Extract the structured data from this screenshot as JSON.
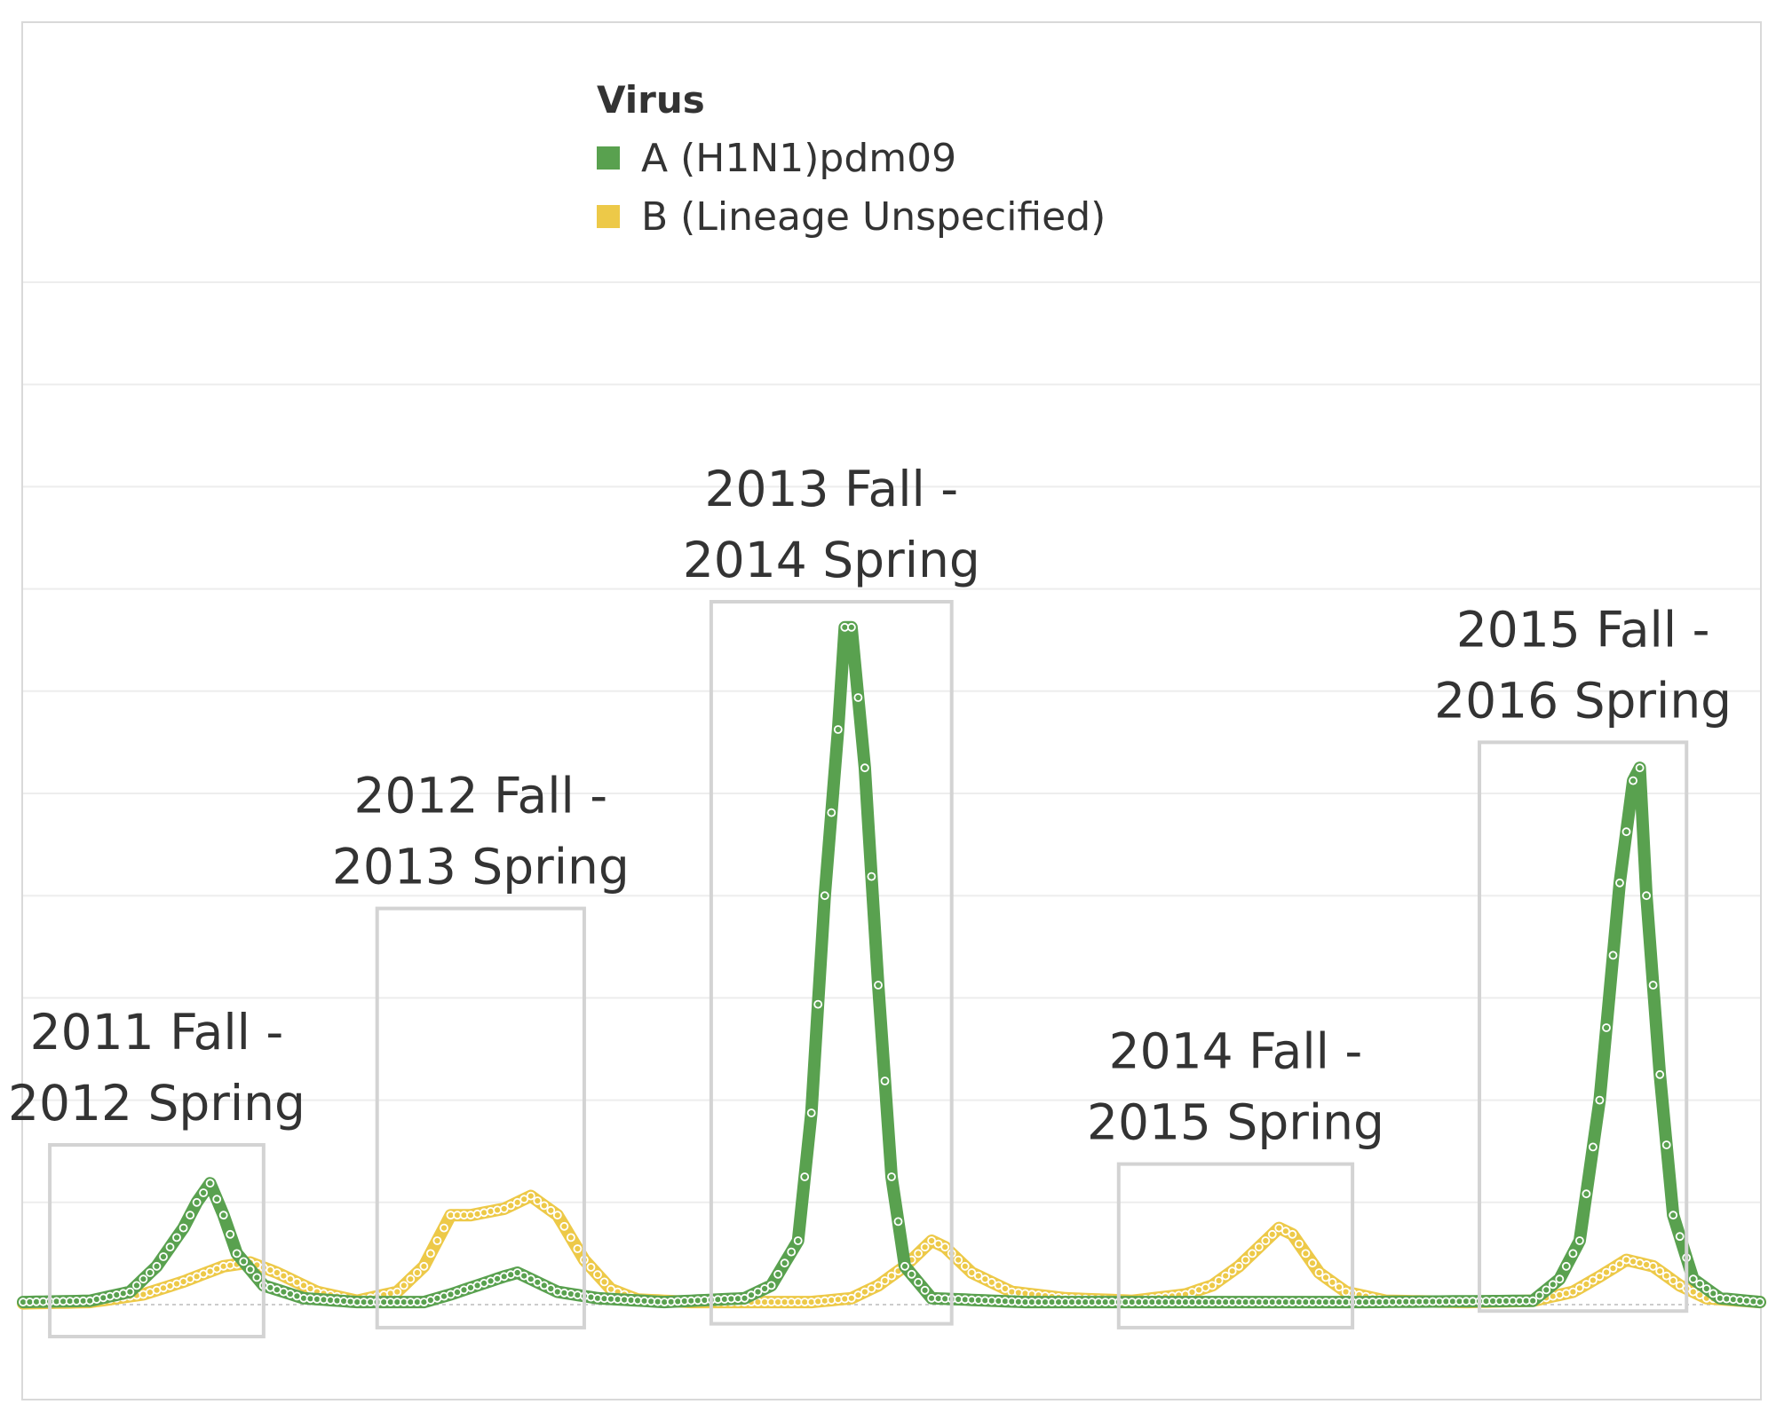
{
  "chart_data": {
    "type": "line",
    "title": "",
    "xlabel": "",
    "ylabel": "",
    "grid": true,
    "legend": {
      "title": "Virus",
      "placement": "top-center",
      "entries": [
        {
          "label": "A (H1N1)pdm09",
          "color": "#59a14f"
        },
        {
          "label": "B (Lineage Unspecified)",
          "color": "#edc948"
        }
      ]
    },
    "ylim": [
      0,
      10
    ],
    "x_range": [
      0,
      260
    ],
    "series": [
      {
        "name": "A (H1N1)pdm09",
        "color": "#59a14f",
        "points": [
          [
            0,
            0.02
          ],
          [
            10,
            0.03
          ],
          [
            16,
            0.1
          ],
          [
            20,
            0.3
          ],
          [
            24,
            0.6
          ],
          [
            26,
            0.8
          ],
          [
            28,
            0.95
          ],
          [
            30,
            0.7
          ],
          [
            32,
            0.4
          ],
          [
            36,
            0.15
          ],
          [
            42,
            0.05
          ],
          [
            50,
            0.02
          ],
          [
            60,
            0.02
          ],
          [
            64,
            0.08
          ],
          [
            68,
            0.15
          ],
          [
            72,
            0.22
          ],
          [
            74,
            0.25
          ],
          [
            76,
            0.2
          ],
          [
            80,
            0.1
          ],
          [
            86,
            0.05
          ],
          [
            96,
            0.02
          ],
          [
            108,
            0.05
          ],
          [
            112,
            0.15
          ],
          [
            116,
            0.5
          ],
          [
            118,
            1.5
          ],
          [
            120,
            3.2
          ],
          [
            122,
            4.5
          ],
          [
            123,
            5.3
          ],
          [
            124,
            5.3
          ],
          [
            126,
            4.2
          ],
          [
            128,
            2.5
          ],
          [
            130,
            1.0
          ],
          [
            132,
            0.3
          ],
          [
            136,
            0.05
          ],
          [
            150,
            0.02
          ],
          [
            200,
            0.02
          ],
          [
            226,
            0.03
          ],
          [
            230,
            0.2
          ],
          [
            233,
            0.5
          ],
          [
            236,
            1.6
          ],
          [
            239,
            3.3
          ],
          [
            241,
            4.1
          ],
          [
            242,
            4.2
          ],
          [
            243,
            3.2
          ],
          [
            245,
            1.8
          ],
          [
            247,
            0.7
          ],
          [
            250,
            0.2
          ],
          [
            254,
            0.05
          ],
          [
            260,
            0.02
          ]
        ]
      },
      {
        "name": "B (Lineage Unspecified)",
        "color": "#edc948",
        "points": [
          [
            0,
            0.01
          ],
          [
            10,
            0.02
          ],
          [
            18,
            0.08
          ],
          [
            24,
            0.18
          ],
          [
            30,
            0.3
          ],
          [
            34,
            0.33
          ],
          [
            38,
            0.25
          ],
          [
            44,
            0.1
          ],
          [
            50,
            0.03
          ],
          [
            56,
            0.1
          ],
          [
            60,
            0.3
          ],
          [
            63,
            0.6
          ],
          [
            64,
            0.7
          ],
          [
            67,
            0.7
          ],
          [
            72,
            0.75
          ],
          [
            76,
            0.85
          ],
          [
            80,
            0.7
          ],
          [
            84,
            0.35
          ],
          [
            88,
            0.12
          ],
          [
            92,
            0.04
          ],
          [
            100,
            0.02
          ],
          [
            118,
            0.02
          ],
          [
            124,
            0.05
          ],
          [
            128,
            0.15
          ],
          [
            132,
            0.3
          ],
          [
            136,
            0.5
          ],
          [
            138,
            0.45
          ],
          [
            142,
            0.25
          ],
          [
            148,
            0.1
          ],
          [
            156,
            0.05
          ],
          [
            166,
            0.03
          ],
          [
            174,
            0.08
          ],
          [
            178,
            0.15
          ],
          [
            182,
            0.3
          ],
          [
            186,
            0.5
          ],
          [
            188,
            0.6
          ],
          [
            190,
            0.55
          ],
          [
            194,
            0.25
          ],
          [
            198,
            0.1
          ],
          [
            204,
            0.03
          ],
          [
            216,
            0.02
          ],
          [
            226,
            0.03
          ],
          [
            232,
            0.1
          ],
          [
            236,
            0.22
          ],
          [
            240,
            0.35
          ],
          [
            244,
            0.3
          ],
          [
            248,
            0.15
          ],
          [
            252,
            0.05
          ],
          [
            260,
            0.02
          ]
        ]
      }
    ],
    "annotations": [
      {
        "line1": "2011 Fall -",
        "line2": "2012 Spring",
        "box_x": [
          4,
          36
        ],
        "box_y": [
          -0.25,
          1.25
        ]
      },
      {
        "line1": "2012 Fall -",
        "line2": "2013 Spring",
        "box_x": [
          53,
          84
        ],
        "box_y": [
          -0.18,
          3.1
        ]
      },
      {
        "line1": "2013 Fall -",
        "line2": "2014 Spring",
        "box_x": [
          103,
          139
        ],
        "box_y": [
          -0.15,
          5.5
        ]
      },
      {
        "line1": "2014 Fall -",
        "line2": "2015 Spring",
        "box_x": [
          164,
          199
        ],
        "box_y": [
          -0.18,
          1.1
        ]
      },
      {
        "line1": "2015 Fall -",
        "line2": "2016 Spring",
        "box_x": [
          218,
          249
        ],
        "box_y": [
          -0.05,
          4.4
        ]
      }
    ]
  }
}
